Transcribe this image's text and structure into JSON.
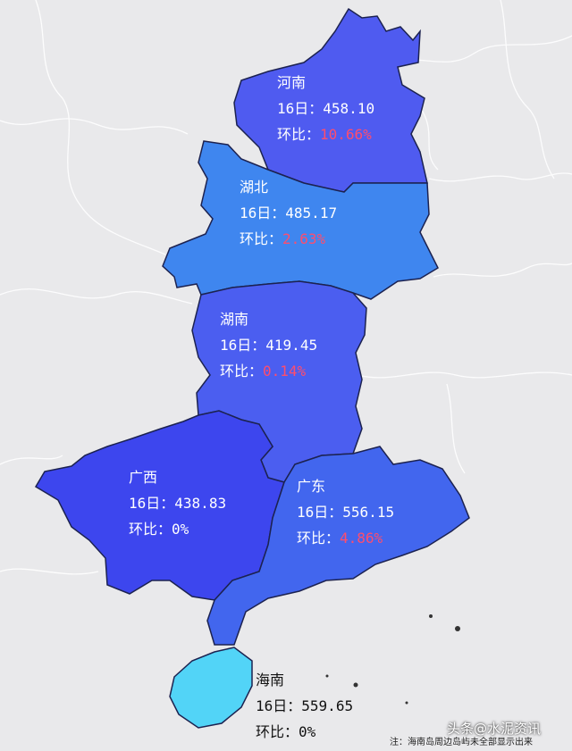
{
  "provinces": {
    "henan": {
      "name": "河南",
      "date_label": "16日：",
      "value": "458.10",
      "chg_label": "环比：",
      "chg": "10.66%",
      "color": "#4f5bf0"
    },
    "hubei": {
      "name": "湖北",
      "date_label": "16日：",
      "value": "485.17",
      "chg_label": "环比：",
      "chg": "2.63%",
      "color": "#3f86ef"
    },
    "hunan": {
      "name": "湖南",
      "date_label": "16日：",
      "value": "419.45",
      "chg_label": "环比：",
      "chg": "0.14%",
      "color": "#4b5ef0"
    },
    "guangxi": {
      "name": "广西",
      "date_label": "16日：",
      "value": "438.83",
      "chg_label": "环比：",
      "chg": "0%",
      "color": "#3d46ee"
    },
    "guangdong": {
      "name": "广东",
      "date_label": "16日：",
      "value": "556.15",
      "chg_label": "环比：",
      "chg": "4.86%",
      "color": "#4266ee"
    },
    "hainan": {
      "name": "海南",
      "date_label": "16日：",
      "value": "559.65",
      "chg_label": "环比：",
      "chg": "0%",
      "color": "#52d4f7"
    }
  },
  "note": "注：海南岛周边岛屿未全部显示出来",
  "watermark": "头条@水泥资讯",
  "colors": {
    "background": "#e9e9eb",
    "border": "#1c2250",
    "change_up": "#ff4d6d"
  }
}
